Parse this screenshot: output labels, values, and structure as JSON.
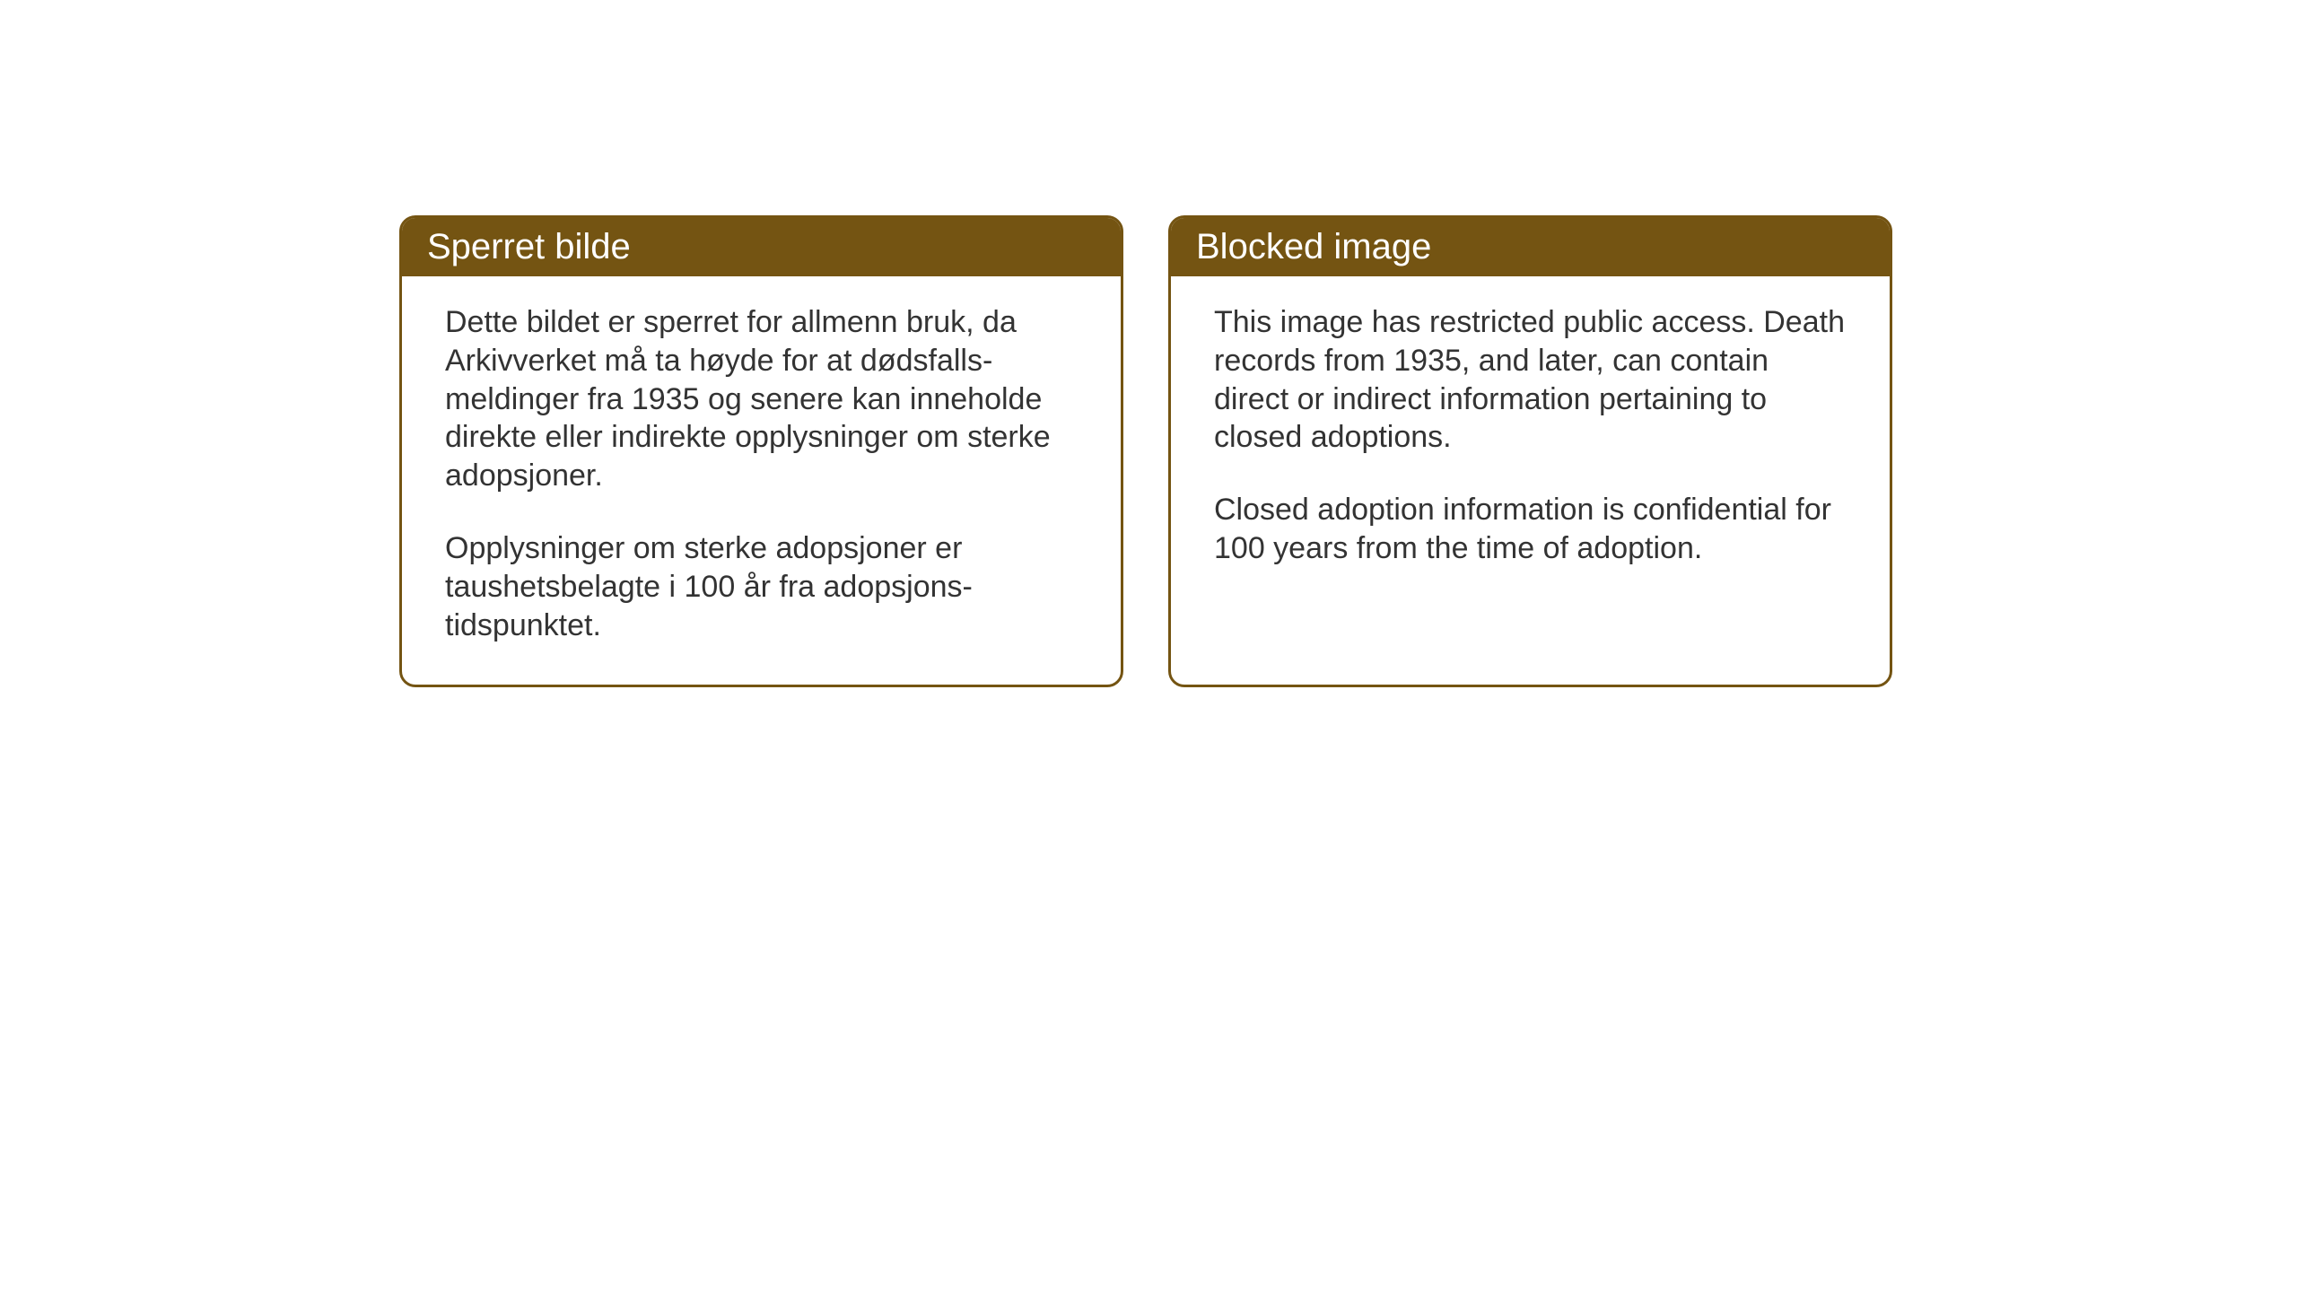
{
  "layout": {
    "background_color": "#ffffff",
    "card_border_color": "#745412",
    "card_border_width": 3,
    "card_border_radius": 18,
    "header_bg_color": "#745412",
    "header_text_color": "#ffffff",
    "body_text_color": "#333333",
    "header_fontsize": 40,
    "body_fontsize": 34
  },
  "cards": {
    "norwegian": {
      "title": "Sperret bilde",
      "paragraph1": "Dette bildet er sperret for allmenn bruk, da Arkivverket må ta høyde for at dødsfalls-meldinger fra 1935 og senere kan inneholde direkte eller indirekte opplysninger om sterke adopsjoner.",
      "paragraph2": "Opplysninger om sterke adopsjoner er taushetsbelagte i 100 år fra adopsjons-tidspunktet."
    },
    "english": {
      "title": "Blocked image",
      "paragraph1": "This image has restricted public access. Death records from 1935, and later, can contain direct or indirect information pertaining to closed adoptions.",
      "paragraph2": "Closed adoption information is confidential for 100 years from the time of adoption."
    }
  }
}
